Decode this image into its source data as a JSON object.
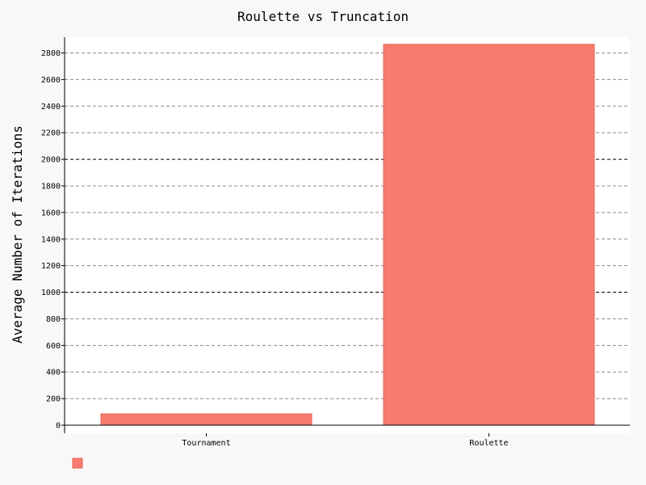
{
  "chart_data": {
    "type": "bar",
    "title": "Roulette vs Truncation",
    "xlabel": "",
    "ylabel": "Average Number of Iterations",
    "categories": [
      "Tournament",
      "Roulette"
    ],
    "series": [
      {
        "values": [
          85,
          2865
        ]
      }
    ],
    "ylim": [
      0,
      2900
    ],
    "yticks": [
      0,
      200,
      400,
      600,
      800,
      1000,
      1200,
      1400,
      1600,
      1800,
      2000,
      2200,
      2400,
      2600,
      2800
    ],
    "major_ticks": [
      1000,
      2000
    ],
    "grid": true,
    "legend": "bottom-left",
    "colors": {
      "bar_fill": "#f77b6e",
      "bar_stroke": "#e36458",
      "plot_bg": "#ffffff",
      "page_bg": "#f8f8f8",
      "grid_minor": "#888888",
      "grid_major": "#000000"
    }
  }
}
